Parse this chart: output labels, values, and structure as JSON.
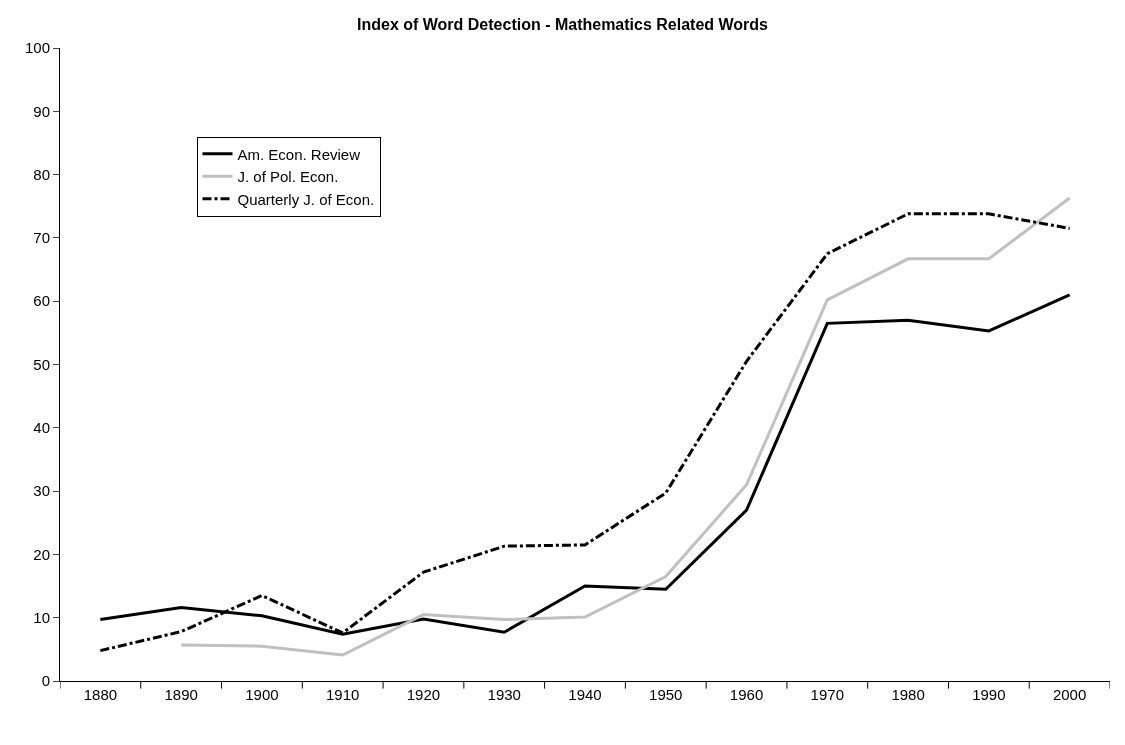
{
  "chart_data": {
    "type": "line",
    "title": "Index of Word Detection - Mathematics Related Words",
    "categories": [
      "1880",
      "1890",
      "1900",
      "1910",
      "1920",
      "1930",
      "1940",
      "1950",
      "1960",
      "1970",
      "1980",
      "1990",
      "2000"
    ],
    "series": [
      {
        "name": "Am. Econ. Review",
        "color": "#000000",
        "line_style": "solid",
        "values": [
          9.7,
          11.6,
          10.3,
          7.4,
          9.8,
          7.7,
          15,
          14.5,
          27,
          56.5,
          57,
          55.3,
          61
        ]
      },
      {
        "name": "J. of Pol. Econ.",
        "color": "#c0c0c0",
        "line_style": "solid",
        "values": [
          null,
          5.7,
          5.5,
          4.1,
          10.5,
          9.7,
          10.1,
          16.5,
          31,
          60.2,
          66.7,
          66.7,
          76.3
        ]
      },
      {
        "name": "Quarterly J. of Econ.",
        "color": "#000000",
        "line_style": "dashed",
        "values": [
          4.8,
          7.8,
          13.5,
          7.6,
          17.2,
          21.3,
          21.5,
          29.7,
          50.5,
          67.5,
          73.8,
          73.8,
          71.5
        ]
      }
    ],
    "ylim": [
      0,
      100
    ],
    "yticks": [
      0,
      10,
      20,
      30,
      40,
      50,
      60,
      70,
      80,
      90,
      100
    ],
    "legend": "top left",
    "marker": "none"
  }
}
